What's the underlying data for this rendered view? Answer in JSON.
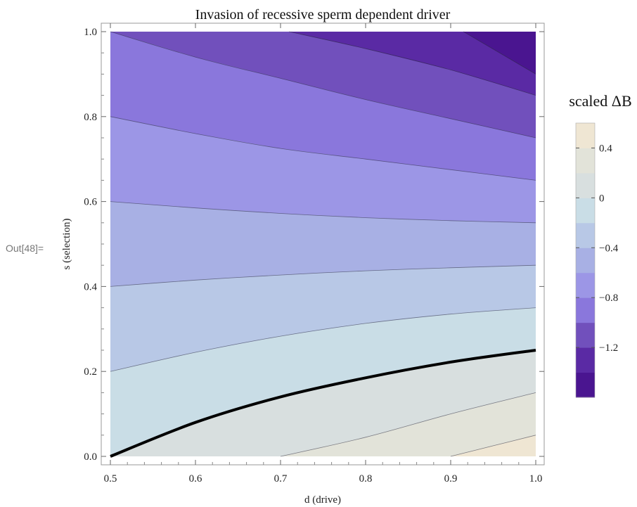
{
  "cell_label": "Out[48]=",
  "chart_data": {
    "type": "contour",
    "title": "Invasion of recessive sperm dependent driver",
    "xlabel": "d (drive)",
    "ylabel": "s (selection)",
    "xlim": [
      0.5,
      1.0
    ],
    "ylim": [
      0.0,
      1.0
    ],
    "x_ticks": [
      "0.5",
      "0.6",
      "0.7",
      "0.8",
      "0.9",
      "1.0"
    ],
    "y_ticks": [
      "0.0",
      "0.2",
      "0.4",
      "0.6",
      "0.8",
      "1.0"
    ],
    "contour_lines": [
      {
        "level": -1.4,
        "points": [
          [
            0.915,
            1.0
          ],
          [
            1.0,
            0.9
          ]
        ]
      },
      {
        "level": -1.2,
        "points": [
          [
            0.71,
            1.0
          ],
          [
            0.8,
            0.96
          ],
          [
            0.9,
            0.91
          ],
          [
            1.0,
            0.85
          ]
        ]
      },
      {
        "level": -1.0,
        "points": [
          [
            0.5,
            1.0
          ],
          [
            0.6,
            0.94
          ],
          [
            0.7,
            0.89
          ],
          [
            0.8,
            0.84
          ],
          [
            0.9,
            0.795
          ],
          [
            1.0,
            0.75
          ]
        ]
      },
      {
        "level": -0.8,
        "points": [
          [
            0.5,
            0.8
          ],
          [
            0.6,
            0.76
          ],
          [
            0.7,
            0.725
          ],
          [
            0.8,
            0.7
          ],
          [
            0.9,
            0.675
          ],
          [
            1.0,
            0.65
          ]
        ]
      },
      {
        "level": -0.6,
        "points": [
          [
            0.5,
            0.6
          ],
          [
            0.6,
            0.585
          ],
          [
            0.7,
            0.572
          ],
          [
            0.8,
            0.562
          ],
          [
            0.9,
            0.555
          ],
          [
            1.0,
            0.55
          ]
        ]
      },
      {
        "level": -0.4,
        "points": [
          [
            0.5,
            0.4
          ],
          [
            0.6,
            0.415
          ],
          [
            0.7,
            0.427
          ],
          [
            0.8,
            0.437
          ],
          [
            0.9,
            0.444
          ],
          [
            1.0,
            0.45
          ]
        ]
      },
      {
        "level": -0.2,
        "points": [
          [
            0.5,
            0.2
          ],
          [
            0.6,
            0.245
          ],
          [
            0.7,
            0.283
          ],
          [
            0.8,
            0.313
          ],
          [
            0.9,
            0.335
          ],
          [
            1.0,
            0.35
          ]
        ]
      },
      {
        "level": 0.0,
        "bold": true,
        "points": [
          [
            0.5,
            0.0
          ],
          [
            0.6,
            0.08
          ],
          [
            0.7,
            0.14
          ],
          [
            0.8,
            0.185
          ],
          [
            0.9,
            0.222
          ],
          [
            1.0,
            0.25
          ]
        ]
      },
      {
        "level": 0.2,
        "points": [
          [
            0.7,
            0.0
          ],
          [
            0.8,
            0.045
          ],
          [
            0.9,
            0.1
          ],
          [
            1.0,
            0.15
          ]
        ]
      },
      {
        "level": 0.4,
        "points": [
          [
            0.9,
            0.0
          ],
          [
            0.95,
            0.025
          ],
          [
            1.0,
            0.05
          ]
        ]
      }
    ],
    "colorbar": {
      "title": "scaled ΔB",
      "bands": [
        {
          "range": [
            -1.6,
            -1.4
          ],
          "color": "#4a1590"
        },
        {
          "range": [
            -1.4,
            -1.2
          ],
          "color": "#5a2aa4"
        },
        {
          "range": [
            -1.2,
            -1.0
          ],
          "color": "#7150bc"
        },
        {
          "range": [
            -1.0,
            -0.8
          ],
          "color": "#8a77dc"
        },
        {
          "range": [
            -0.8,
            -0.6
          ],
          "color": "#9c96e6"
        },
        {
          "range": [
            -0.6,
            -0.4
          ],
          "color": "#a8b0e4"
        },
        {
          "range": [
            -0.4,
            -0.2
          ],
          "color": "#b8c8e6"
        },
        {
          "range": [
            -0.2,
            0.0
          ],
          "color": "#c9dde6"
        },
        {
          "range": [
            0.0,
            0.2
          ],
          "color": "#d8dfdf"
        },
        {
          "range": [
            0.2,
            0.4
          ],
          "color": "#e2e3d9"
        },
        {
          "range": [
            0.4,
            0.6
          ],
          "color": "#efe6d3"
        }
      ],
      "tick_labels": [
        "0.4",
        "0",
        "−0.4",
        "−0.8",
        "−1.2"
      ],
      "tick_values": [
        0.4,
        0.0,
        -0.4,
        -0.8,
        -1.2
      ]
    }
  }
}
